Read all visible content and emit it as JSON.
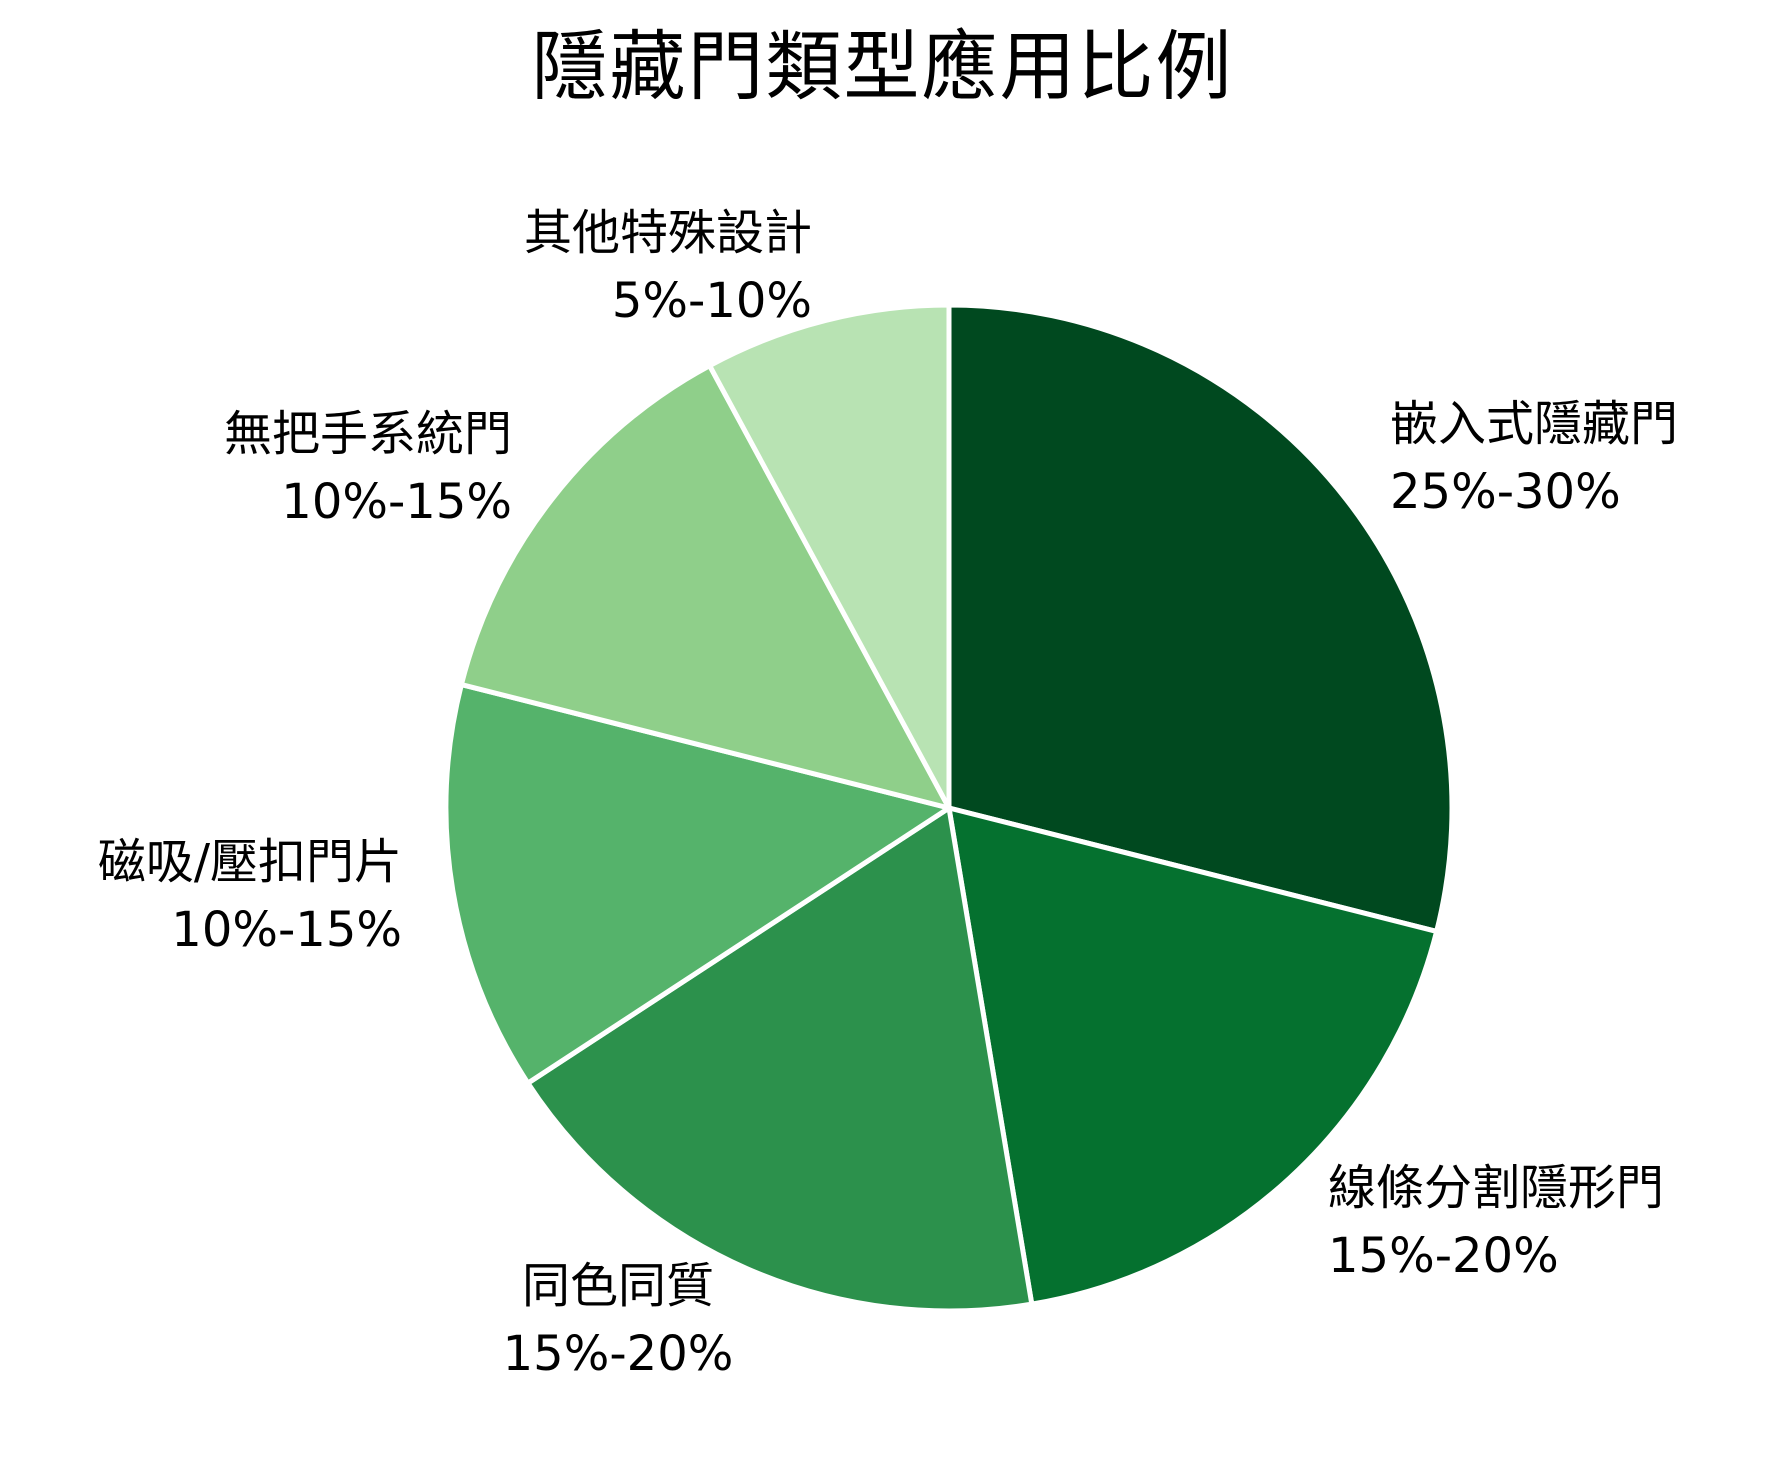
{
  "chart_data": {
    "type": "pie",
    "title": "隱藏門類型應用比例",
    "slices": [
      {
        "label": "嵌入式隱藏門",
        "value_text": "25%-30%",
        "value": 27.5,
        "color": "#00491f"
      },
      {
        "label": "線條分割隱形門",
        "value_text": "15%-20%",
        "value": 17.5,
        "color": "#05712f"
      },
      {
        "label": "同色同質",
        "value_text": "15%-20%",
        "value": 17.5,
        "color": "#2c914c"
      },
      {
        "label": "磁吸/壓扣門片",
        "value_text": "10%-15%",
        "value": 12.5,
        "color": "#55b36b"
      },
      {
        "label": "無把手系統門",
        "value_text": "10%-15%",
        "value": 12.5,
        "color": "#8fcf8a"
      },
      {
        "label": "其他特殊設計",
        "value_text": "5%-10%",
        "value": 7.5,
        "color": "#b8e3b3"
      }
    ],
    "start_angle": "12 o'clock",
    "direction": "clockwise",
    "legend": "none",
    "slice_border_color": "#ffffff"
  }
}
